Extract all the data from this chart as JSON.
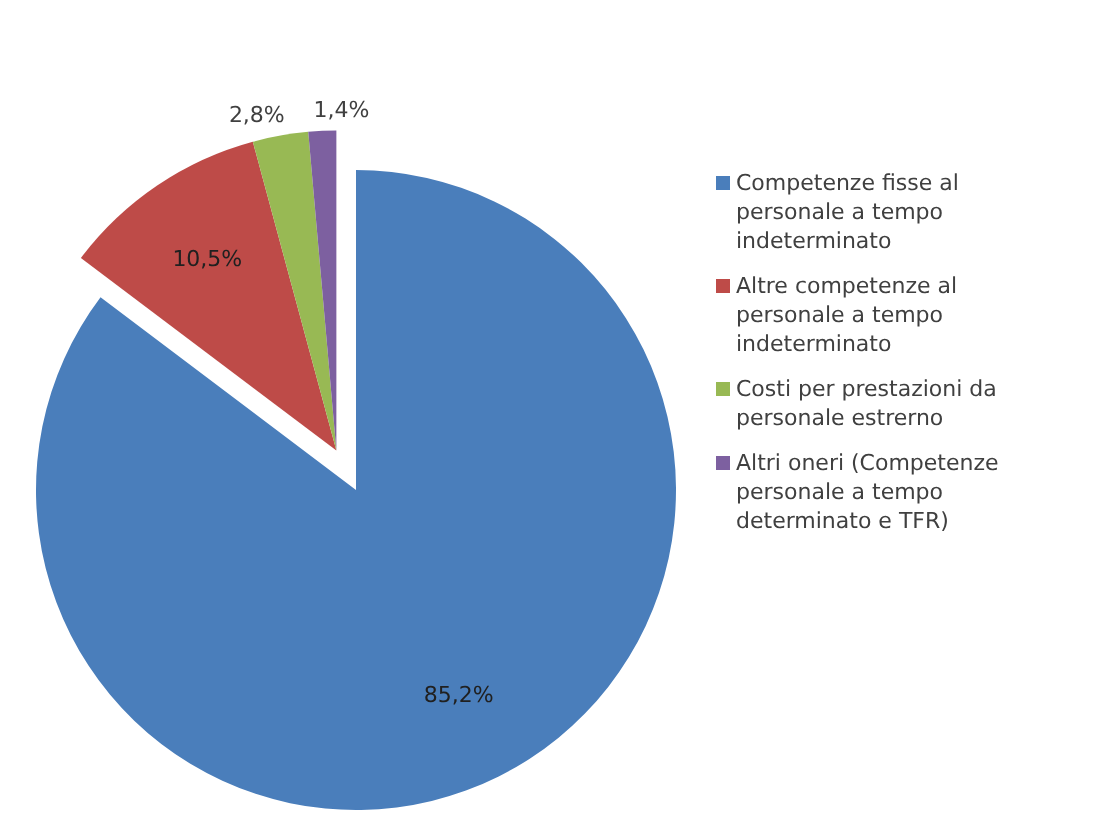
{
  "chart_data": {
    "type": "pie",
    "categories": [
      "Competenze fisse al personale a tempo indeterminato",
      "Altre competenze al personale a tempo indeterminato",
      "Costi per prestazioni da personale estrerno",
      "Altri oneri (Competenze personale a tempo determinato e TFR)"
    ],
    "values": [
      85.2,
      10.5,
      2.8,
      1.4
    ],
    "value_labels": [
      "85,2%",
      "10,5%",
      "2,8%",
      "1,4%"
    ],
    "colors": [
      "#4a7ebb",
      "#be4b48",
      "#98b954",
      "#7d60a0"
    ],
    "legend": "right"
  }
}
